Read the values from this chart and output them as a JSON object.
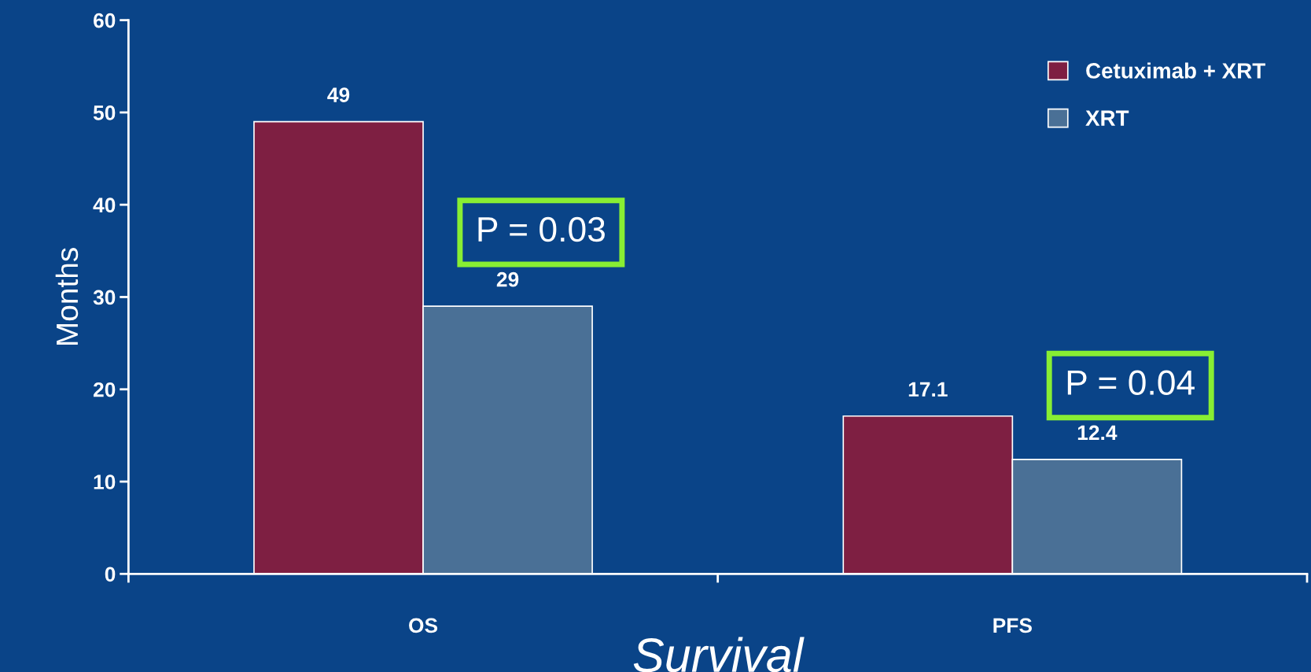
{
  "chart_data": {
    "type": "bar",
    "xlabel": "Survival",
    "ylabel": "Months",
    "categories": [
      "OS",
      "PFS"
    ],
    "series": [
      {
        "name": "Cetuximab + XRT",
        "color": "#7e1f42",
        "values": [
          49,
          17.1
        ]
      },
      {
        "name": "XRT",
        "color": "#4a7096",
        "values": [
          29,
          12.4
        ]
      }
    ],
    "ylim": [
      0,
      60
    ],
    "yticks": [
      0,
      10,
      20,
      30,
      40,
      50,
      60
    ],
    "data_labels": true,
    "legend": "top right",
    "grid": false,
    "annotations": [
      "P = 0.03",
      "P = 0.04"
    ]
  }
}
